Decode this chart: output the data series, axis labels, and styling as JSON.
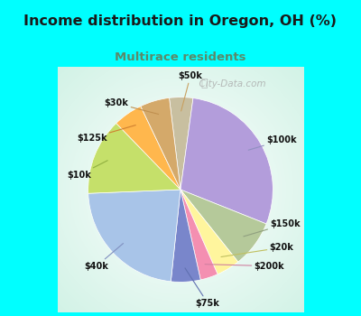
{
  "title": "Income distribution in Oregon, OH (%)",
  "subtitle": "Multirace residents",
  "bg_color": "#00FFFF",
  "chart_bg": "#d4ede4",
  "labels": [
    "$50k",
    "$100k",
    "$150k",
    "$20k",
    "$200k",
    "$75k",
    "$40k",
    "$10k",
    "$125k",
    "$30k"
  ],
  "sizes": [
    4,
    28,
    8,
    4,
    3,
    5,
    22,
    13,
    5,
    5
  ],
  "colors": [
    "#c8bfa0",
    "#b39ddb",
    "#b5c99a",
    "#fff59d",
    "#f48fb1",
    "#7986cb",
    "#a8c4e8",
    "#c5e06a",
    "#ffb74d",
    "#d4a96a"
  ],
  "startangle": 97,
  "label_colors": [
    "#c8a060",
    "#9090c0",
    "#90a080",
    "#c0c060",
    "#d080a0",
    "#6070b0",
    "#8090c0",
    "#90b040",
    "#d08030",
    "#c09050"
  ],
  "watermark": "City-Data.com"
}
